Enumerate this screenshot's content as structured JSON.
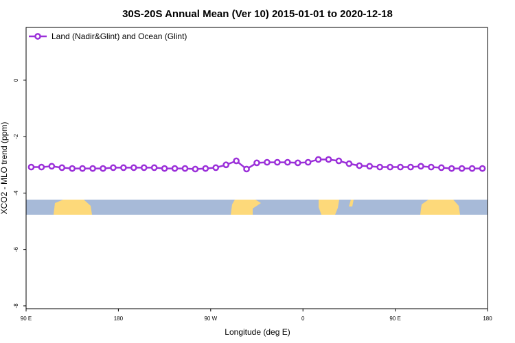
{
  "chart_data": {
    "type": "line",
    "title": "30S-20S Annual Mean (Ver 10)   2015-01-01 to 2020-12-18",
    "x_label": "Longitude (deg E)",
    "y_label": "XCO2 - MLO trend (ppm)",
    "x": [
      95,
      105,
      115,
      125,
      135,
      145,
      155,
      165,
      175,
      185,
      195,
      205,
      215,
      225,
      235,
      245,
      255,
      265,
      275,
      285,
      295,
      305,
      315,
      325,
      335,
      345,
      355,
      365,
      375,
      385,
      395,
      405,
      415,
      425,
      435,
      445,
      455,
      465,
      475,
      485,
      495,
      505,
      515,
      525,
      535
    ],
    "series": [
      {
        "name": "Land (Nadir&Glint) and Ocean (Glint)",
        "color": "#9b30d9",
        "values": [
          -3.08,
          -3.08,
          -3.05,
          -3.1,
          -3.13,
          -3.13,
          -3.13,
          -3.13,
          -3.1,
          -3.1,
          -3.1,
          -3.1,
          -3.1,
          -3.13,
          -3.13,
          -3.13,
          -3.15,
          -3.13,
          -3.1,
          -3.0,
          -2.86,
          -3.15,
          -2.93,
          -2.91,
          -2.91,
          -2.91,
          -2.93,
          -2.91,
          -2.81,
          -2.81,
          -2.86,
          -2.96,
          -3.03,
          -3.05,
          -3.08,
          -3.08,
          -3.08,
          -3.08,
          -3.05,
          -3.08,
          -3.1,
          -3.13,
          -3.13,
          -3.13,
          -3.13
        ]
      }
    ],
    "xlim": [
      90,
      540
    ],
    "xticks": [
      {
        "value": 90,
        "label": "90 E"
      },
      180,
      {
        "value": 270,
        "label": "90 W"
      },
      {
        "value": 360,
        "label": "0"
      },
      {
        "value": 450,
        "label": "90 E"
      },
      {
        "value": 540,
        "label": "180"
      }
    ],
    "ylim": [
      -8.1,
      1.87
    ],
    "yticks": [
      0,
      -2,
      -4,
      -6,
      -8
    ],
    "legend": "top-left"
  }
}
